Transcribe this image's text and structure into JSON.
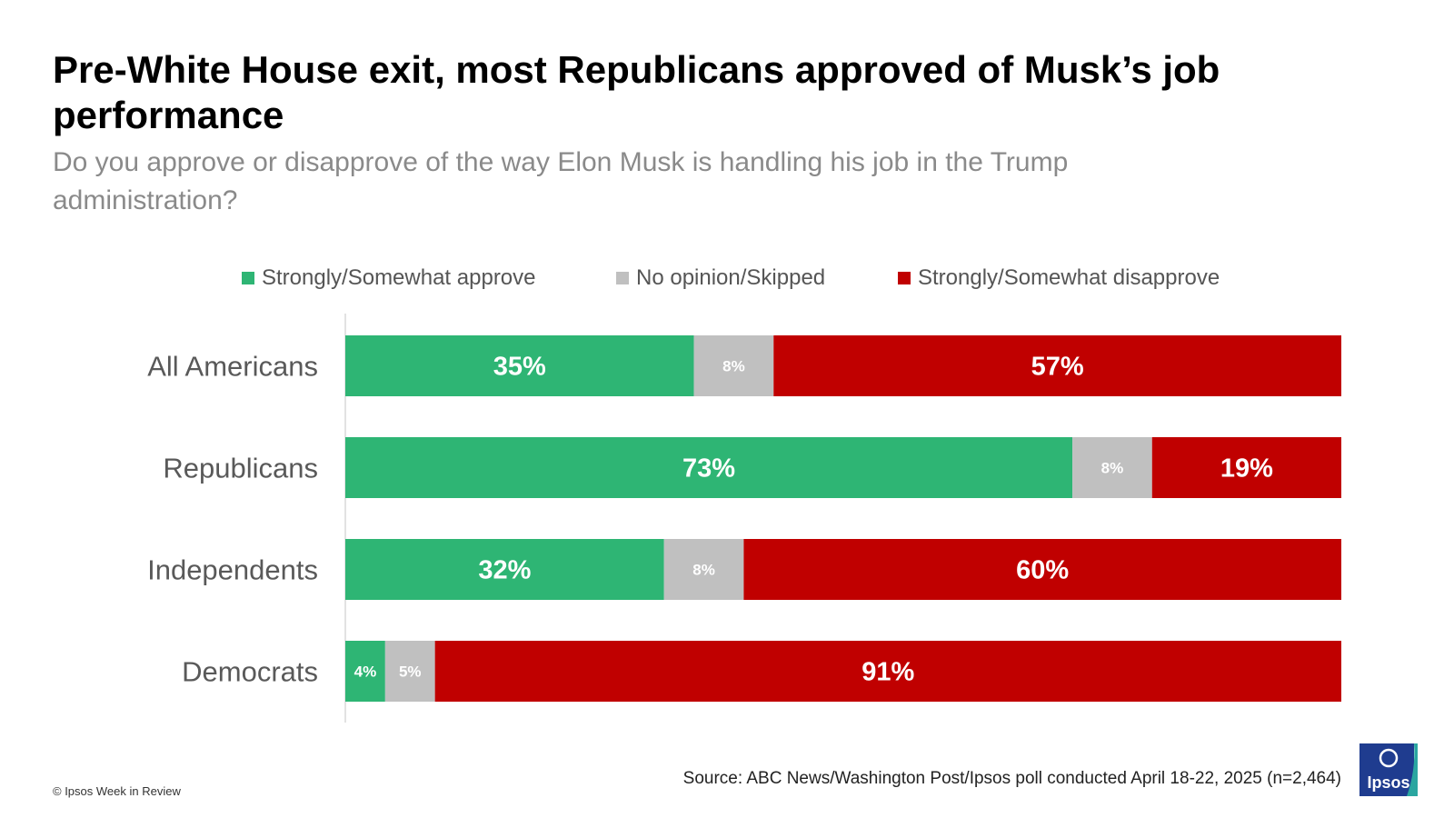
{
  "header": {
    "title": "Pre-White House exit, most Republicans approved of Musk’s job performance",
    "subtitle": "Do you approve or disapprove of the way Elon Musk is handling his job in the Trump administration?"
  },
  "legend": {
    "items": [
      {
        "label": "Strongly/Somewhat approve",
        "color": "#2eb574"
      },
      {
        "label": "No opinion/Skipped",
        "color": "#c0c0c0"
      },
      {
        "label": "Strongly/Somewhat disapprove",
        "color": "#c00000"
      }
    ]
  },
  "chart_data": {
    "type": "bar",
    "orientation": "horizontal",
    "stacked": true,
    "categories": [
      "All Americans",
      "Republicans",
      "Independents",
      "Democrats"
    ],
    "series": [
      {
        "name": "Strongly/Somewhat approve",
        "values": [
          35,
          73,
          32,
          4
        ],
        "color": "#2eb574"
      },
      {
        "name": "No opinion/Skipped",
        "values": [
          8,
          8,
          8,
          5
        ],
        "color": "#c0c0c0"
      },
      {
        "name": "Strongly/Somewhat disapprove",
        "values": [
          57,
          19,
          60,
          91
        ],
        "color": "#c00000"
      }
    ],
    "value_suffix": "%",
    "xlim": [
      0,
      100
    ],
    "legend_position": "top",
    "grid": false
  },
  "footer": {
    "copyright": "© Ipsos Week in Review",
    "source": "Source: ABC News/Washington Post/Ipsos poll conducted April 18-22, 2025 (n=2,464)"
  },
  "logo": {
    "text": "Ipsos",
    "color": "#1f3c8f",
    "accent": "#2aa6a0"
  }
}
